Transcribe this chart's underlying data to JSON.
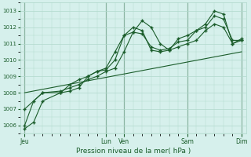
{
  "title": "",
  "xlabel": "Pression niveau de la mer( hPa )",
  "ylim": [
    1005.5,
    1013.5
  ],
  "yticks": [
    1006,
    1007,
    1008,
    1009,
    1010,
    1011,
    1012,
    1013
  ],
  "bg_color": "#d6f0ec",
  "grid_color": "#b0d8cc",
  "vline_color": "#336644",
  "line_color": "#1a5c2a",
  "xtick_positions": [
    0,
    18,
    22,
    36,
    48
  ],
  "xtick_labels": [
    "Jeu",
    "Lun",
    "Ven",
    "Sam",
    "Dim"
  ],
  "line1_x": [
    0,
    2,
    4,
    8,
    10,
    12,
    14,
    16,
    18,
    20,
    22,
    24,
    26,
    28,
    30,
    32,
    34,
    36,
    38,
    40,
    42,
    44,
    46,
    48
  ],
  "line1_y": [
    1005.8,
    1006.2,
    1007.5,
    1008.0,
    1008.1,
    1008.3,
    1009.0,
    1009.3,
    1009.5,
    1010.5,
    1011.5,
    1011.7,
    1011.6,
    1010.8,
    1010.6,
    1010.7,
    1011.1,
    1011.2,
    1011.8,
    1012.2,
    1013.0,
    1012.8,
    1011.0,
    1011.3
  ],
  "line2_x": [
    0,
    2,
    4,
    8,
    10,
    12,
    14,
    16,
    18,
    20,
    22,
    24,
    26,
    28,
    30,
    32,
    34,
    36,
    38,
    40,
    42,
    44,
    46,
    48
  ],
  "line2_y": [
    1006.0,
    1007.5,
    1008.0,
    1008.0,
    1008.5,
    1008.8,
    1009.0,
    1009.3,
    1009.4,
    1010.0,
    1011.5,
    1012.0,
    1011.8,
    1010.6,
    1010.5,
    1010.6,
    1011.3,
    1011.5,
    1011.8,
    1012.0,
    1012.7,
    1012.5,
    1011.2,
    1011.2
  ],
  "line3_x": [
    0,
    4,
    8,
    10,
    12,
    14,
    16,
    18,
    20,
    22,
    24,
    26,
    28,
    30,
    32,
    34,
    36,
    38,
    40,
    42,
    44,
    46,
    48
  ],
  "line3_y": [
    1007.0,
    1008.0,
    1008.1,
    1008.3,
    1008.5,
    1008.8,
    1009.0,
    1009.3,
    1009.5,
    1010.5,
    1011.7,
    1012.4,
    1012.0,
    1011.0,
    1010.6,
    1010.8,
    1011.0,
    1011.2,
    1011.8,
    1012.2,
    1012.0,
    1011.0,
    1011.2
  ],
  "line4_x": [
    0,
    48
  ],
  "line4_y": [
    1008.0,
    1010.5
  ],
  "vlines": [
    0,
    18,
    22,
    36,
    48
  ]
}
